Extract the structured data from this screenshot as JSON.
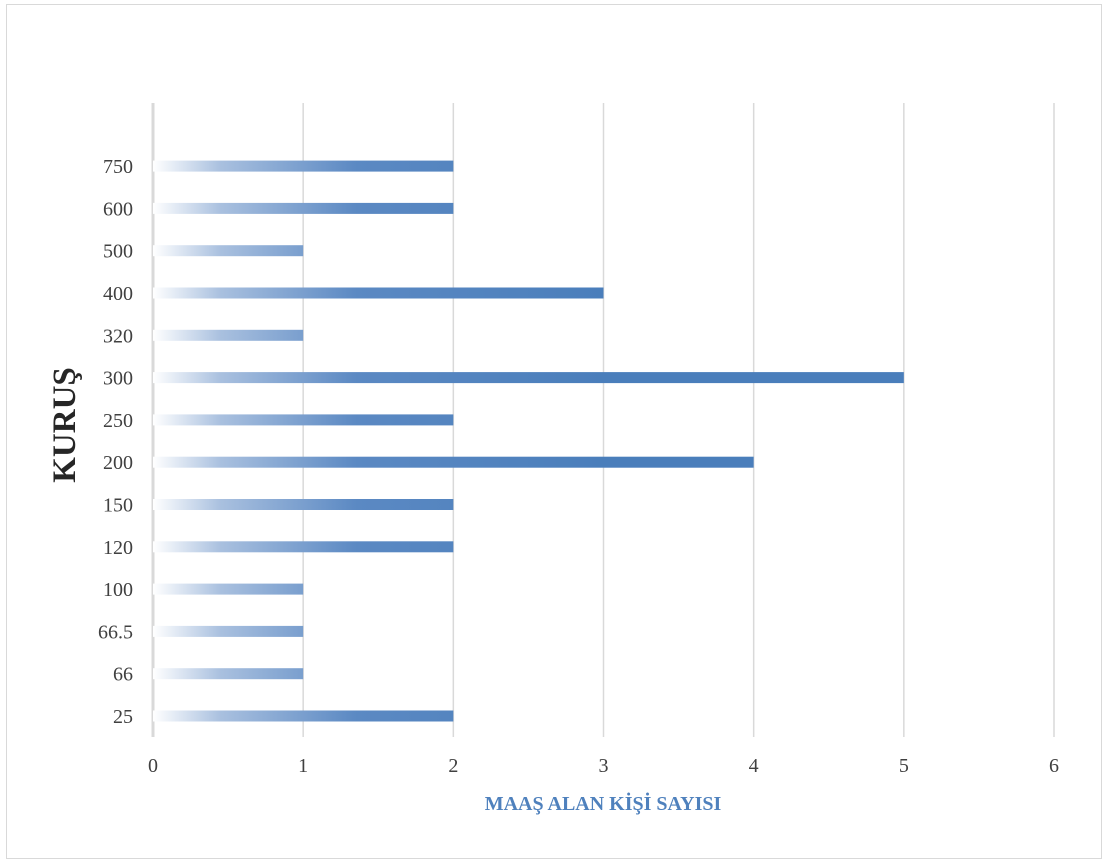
{
  "chart_data": {
    "type": "bar",
    "orientation": "horizontal",
    "categories": [
      "25",
      "66",
      "66.5",
      "100",
      "120",
      "150",
      "200",
      "250",
      "300",
      "320",
      "400",
      "500",
      "600",
      "750"
    ],
    "values": [
      2,
      1,
      1,
      1,
      2,
      2,
      4,
      2,
      5,
      1,
      3,
      1,
      2,
      2
    ],
    "xlabel": "MAAŞ ALAN KİŞİ SAYISI",
    "ylabel": "KURUŞ",
    "xlim": [
      0,
      6
    ],
    "xticks": [
      "0",
      "1",
      "2",
      "3",
      "4",
      "5",
      "6"
    ],
    "grid": "vertical",
    "legend": "none",
    "colors": {
      "bar": "#4a7ebb",
      "bar_fade": "#ffffff",
      "grid": "#d9d9d9",
      "xtitle": "#4f81bd"
    }
  }
}
